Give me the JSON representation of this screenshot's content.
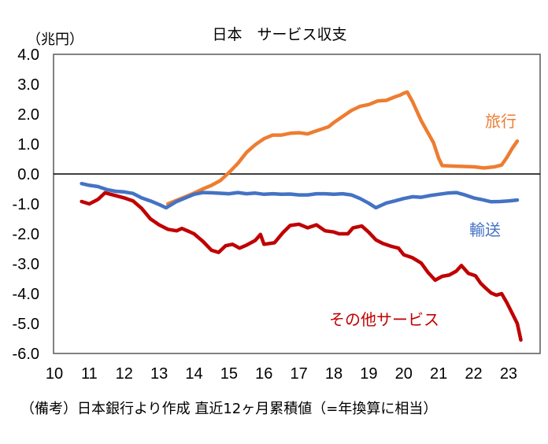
{
  "chart_data": {
    "type": "line",
    "title": "日本　サービス収支",
    "ylabel": "（兆円）",
    "xlabel": "",
    "ylim": [
      -6.0,
      4.0
    ],
    "xlim": [
      10,
      24
    ],
    "yticks": [
      "4.0",
      "3.0",
      "2.0",
      "1.0",
      "0.0",
      "-1.0",
      "-2.0",
      "-3.0",
      "-4.0",
      "-5.0",
      "-6.0"
    ],
    "ytick_values": [
      4,
      3,
      2,
      1,
      0,
      -1,
      -2,
      -3,
      -4,
      -5,
      -6
    ],
    "xticks": [
      "10",
      "11",
      "12",
      "13",
      "14",
      "15",
      "16",
      "17",
      "18",
      "19",
      "20",
      "21",
      "22",
      "23"
    ],
    "xtick_values": [
      10,
      11,
      12,
      13,
      14,
      15,
      16,
      17,
      18,
      19,
      20,
      21,
      22,
      23
    ],
    "grid": false,
    "zero_line": true,
    "footnote": "（備考）日本銀行より作成 直近12ヶ月累積値（=年換算に相当）",
    "series": [
      {
        "name": "旅行",
        "color": "#ED7D31",
        "label_position": "right-upper",
        "points": [
          [
            13.25,
            -1.0
          ],
          [
            13.5,
            -0.88
          ],
          [
            13.75,
            -0.76
          ],
          [
            14.0,
            -0.64
          ],
          [
            14.25,
            -0.5
          ],
          [
            14.5,
            -0.38
          ],
          [
            14.75,
            -0.22
          ],
          [
            15.0,
            0.05
          ],
          [
            15.25,
            0.35
          ],
          [
            15.5,
            0.72
          ],
          [
            15.75,
            0.98
          ],
          [
            16.0,
            1.18
          ],
          [
            16.25,
            1.3
          ],
          [
            16.5,
            1.3
          ],
          [
            16.75,
            1.36
          ],
          [
            17.0,
            1.38
          ],
          [
            17.25,
            1.34
          ],
          [
            17.4,
            1.4
          ],
          [
            17.6,
            1.48
          ],
          [
            17.85,
            1.58
          ],
          [
            18.0,
            1.72
          ],
          [
            18.25,
            1.92
          ],
          [
            18.5,
            2.12
          ],
          [
            18.75,
            2.26
          ],
          [
            19.0,
            2.32
          ],
          [
            19.25,
            2.44
          ],
          [
            19.5,
            2.46
          ],
          [
            19.75,
            2.58
          ],
          [
            19.9,
            2.64
          ],
          [
            20.0,
            2.7
          ],
          [
            20.1,
            2.74
          ],
          [
            20.25,
            2.42
          ],
          [
            20.5,
            1.78
          ],
          [
            20.7,
            1.36
          ],
          [
            20.85,
            1.05
          ],
          [
            21.0,
            0.52
          ],
          [
            21.1,
            0.28
          ],
          [
            21.5,
            0.26
          ],
          [
            22.0,
            0.24
          ],
          [
            22.3,
            0.2
          ],
          [
            22.6,
            0.24
          ],
          [
            22.8,
            0.3
          ],
          [
            22.95,
            0.55
          ],
          [
            23.1,
            0.85
          ],
          [
            23.25,
            1.1
          ]
        ]
      },
      {
        "name": "輸送",
        "color": "#4472C4",
        "label_position": "right-middle",
        "points": [
          [
            10.78,
            -0.32
          ],
          [
            11.0,
            -0.38
          ],
          [
            11.25,
            -0.42
          ],
          [
            11.5,
            -0.52
          ],
          [
            11.75,
            -0.58
          ],
          [
            12.0,
            -0.6
          ],
          [
            12.25,
            -0.65
          ],
          [
            12.5,
            -0.8
          ],
          [
            12.75,
            -0.9
          ],
          [
            13.0,
            -1.02
          ],
          [
            13.2,
            -1.13
          ],
          [
            13.5,
            -0.92
          ],
          [
            13.75,
            -0.8
          ],
          [
            14.0,
            -0.68
          ],
          [
            14.25,
            -0.62
          ],
          [
            14.5,
            -0.63
          ],
          [
            15.0,
            -0.66
          ],
          [
            15.25,
            -0.62
          ],
          [
            15.5,
            -0.66
          ],
          [
            15.75,
            -0.64
          ],
          [
            16.0,
            -0.68
          ],
          [
            16.25,
            -0.66
          ],
          [
            16.5,
            -0.68
          ],
          [
            16.75,
            -0.67
          ],
          [
            17.0,
            -0.7
          ],
          [
            17.25,
            -0.7
          ],
          [
            17.5,
            -0.66
          ],
          [
            17.75,
            -0.66
          ],
          [
            18.0,
            -0.68
          ],
          [
            18.25,
            -0.66
          ],
          [
            18.5,
            -0.7
          ],
          [
            18.75,
            -0.82
          ],
          [
            19.0,
            -0.98
          ],
          [
            19.2,
            -1.13
          ],
          [
            19.5,
            -0.97
          ],
          [
            19.75,
            -0.9
          ],
          [
            20.0,
            -0.82
          ],
          [
            20.25,
            -0.76
          ],
          [
            20.5,
            -0.78
          ],
          [
            20.75,
            -0.72
          ],
          [
            21.0,
            -0.68
          ],
          [
            21.25,
            -0.64
          ],
          [
            21.5,
            -0.62
          ],
          [
            21.75,
            -0.7
          ],
          [
            22.0,
            -0.8
          ],
          [
            22.25,
            -0.86
          ],
          [
            22.5,
            -0.93
          ],
          [
            22.75,
            -0.92
          ],
          [
            23.0,
            -0.9
          ],
          [
            23.25,
            -0.87
          ]
        ]
      },
      {
        "name": "その他サービス",
        "color": "#C00000",
        "label_position": "bottom-center",
        "points": [
          [
            10.78,
            -0.92
          ],
          [
            11.0,
            -1.0
          ],
          [
            11.25,
            -0.85
          ],
          [
            11.45,
            -0.63
          ],
          [
            11.75,
            -0.72
          ],
          [
            12.0,
            -0.8
          ],
          [
            12.25,
            -0.9
          ],
          [
            12.5,
            -1.15
          ],
          [
            12.75,
            -1.5
          ],
          [
            13.0,
            -1.7
          ],
          [
            13.25,
            -1.85
          ],
          [
            13.5,
            -1.9
          ],
          [
            13.65,
            -1.82
          ],
          [
            13.85,
            -1.92
          ],
          [
            14.0,
            -2.0
          ],
          [
            14.25,
            -2.25
          ],
          [
            14.5,
            -2.55
          ],
          [
            14.7,
            -2.62
          ],
          [
            14.9,
            -2.4
          ],
          [
            15.1,
            -2.35
          ],
          [
            15.3,
            -2.48
          ],
          [
            15.5,
            -2.38
          ],
          [
            15.75,
            -2.22
          ],
          [
            15.9,
            -2.02
          ],
          [
            16.0,
            -2.35
          ],
          [
            16.3,
            -2.3
          ],
          [
            16.55,
            -1.95
          ],
          [
            16.75,
            -1.72
          ],
          [
            17.0,
            -1.68
          ],
          [
            17.25,
            -1.8
          ],
          [
            17.5,
            -1.7
          ],
          [
            17.75,
            -1.9
          ],
          [
            18.0,
            -1.94
          ],
          [
            18.15,
            -2.0
          ],
          [
            18.4,
            -2.0
          ],
          [
            18.55,
            -1.8
          ],
          [
            18.8,
            -1.74
          ],
          [
            19.0,
            -1.95
          ],
          [
            19.2,
            -2.2
          ],
          [
            19.4,
            -2.32
          ],
          [
            19.65,
            -2.42
          ],
          [
            19.85,
            -2.48
          ],
          [
            20.0,
            -2.7
          ],
          [
            20.25,
            -2.8
          ],
          [
            20.5,
            -2.98
          ],
          [
            20.7,
            -3.3
          ],
          [
            20.9,
            -3.55
          ],
          [
            21.1,
            -3.42
          ],
          [
            21.3,
            -3.38
          ],
          [
            21.5,
            -3.25
          ],
          [
            21.65,
            -3.06
          ],
          [
            21.85,
            -3.32
          ],
          [
            22.05,
            -3.4
          ],
          [
            22.2,
            -3.65
          ],
          [
            22.35,
            -3.82
          ],
          [
            22.5,
            -3.98
          ],
          [
            22.65,
            -4.05
          ],
          [
            22.8,
            -4.0
          ],
          [
            22.95,
            -4.3
          ],
          [
            23.1,
            -4.65
          ],
          [
            23.25,
            -5.0
          ],
          [
            23.35,
            -5.55
          ]
        ]
      }
    ]
  }
}
